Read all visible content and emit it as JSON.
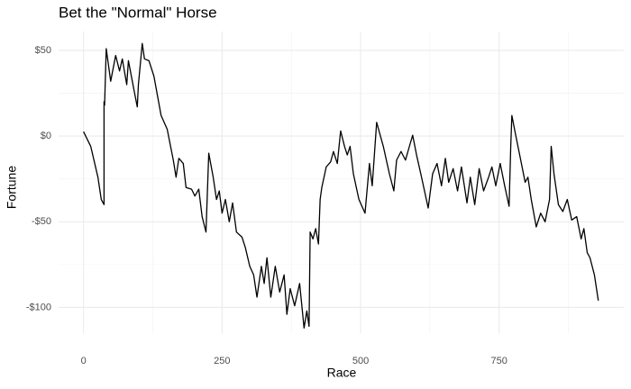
{
  "chart_data": {
    "type": "line",
    "title": "Bet the \"Normal\" Horse",
    "x_label": "Race",
    "y_label": "Fortune",
    "xlim": [
      -45,
      975
    ],
    "ylim": [
      -115,
      61
    ],
    "xticks": [
      0,
      250,
      500,
      750
    ],
    "x_minor_ticks": [
      125,
      375,
      625,
      875
    ],
    "yticks": [
      {
        "value": -100,
        "label": "-$100"
      },
      {
        "value": -50,
        "label": "-$50"
      },
      {
        "value": 0,
        "label": "$0"
      },
      {
        "value": 50,
        "label": "$50"
      }
    ],
    "y_minor_ticks": [
      -75,
      -25,
      25
    ],
    "grid": true,
    "series": [
      {
        "color": "#000000",
        "x": [
          0,
          13,
          26,
          32,
          37,
          37,
          38,
          41,
          49,
          58,
          65,
          70,
          78,
          81,
          91,
          97,
          99,
          106,
          110,
          118,
          127,
          140,
          151,
          162,
          167,
          172,
          180,
          185,
          195,
          201,
          208,
          214,
          221,
          226,
          234,
          240,
          245,
          250,
          256,
          263,
          269,
          276,
          286,
          292,
          300,
          307,
          313,
          321,
          326,
          331,
          338,
          346,
          354,
          362,
          367,
          373,
          381,
          390,
          398,
          403,
          407,
          409,
          414,
          419,
          424,
          427,
          430,
          438,
          446,
          451,
          458,
          464,
          471,
          476,
          481,
          487,
          497,
          508,
          516,
          521,
          529,
          541,
          552,
          560,
          565,
          573,
          581,
          589,
          594,
          601,
          610,
          622,
          630,
          638,
          646,
          653,
          659,
          667,
          675,
          682,
          692,
          698,
          706,
          714,
          722,
          731,
          737,
          744,
          752,
          760,
          768,
          771,
          773,
          779,
          789,
          797,
          802,
          808,
          817,
          825,
          833,
          841,
          844,
          849,
          857,
          865,
          873,
          881,
          890,
          898,
          903,
          909,
          914,
          922,
          929
        ],
        "values": [
          2.6,
          -6,
          -24,
          -37,
          -40,
          20,
          18,
          51,
          32,
          47,
          38,
          45,
          30,
          44,
          27,
          17,
          30,
          54,
          45,
          44,
          35,
          12,
          4,
          -14,
          -24,
          -13,
          -16,
          -30,
          -31,
          -35,
          -31,
          -47,
          -56,
          -10,
          -24,
          -37,
          -32,
          -45,
          -37,
          -50,
          -39,
          -56,
          -59,
          -65,
          -76,
          -81,
          -94,
          -76,
          -86,
          -71,
          -94,
          -76,
          -91,
          -81,
          -104,
          -89,
          -99,
          -86,
          -112,
          -102,
          -111,
          -56,
          -60,
          -54,
          -63,
          -37,
          -30,
          -18,
          -15,
          -9,
          -16,
          3,
          -6,
          -11,
          -6,
          -22,
          -37,
          -45,
          -16,
          -29,
          8,
          -6,
          -22,
          -32,
          -14,
          -9,
          -14,
          -5,
          0.5,
          -11,
          -24,
          -42,
          -22,
          -16,
          -29,
          -13,
          -27,
          -19,
          -32,
          -18,
          -39,
          -24,
          -40,
          -19,
          -32,
          -24,
          -18,
          -29,
          -16,
          -29,
          -41,
          -6,
          12,
          2,
          -14,
          -27,
          -24,
          -37,
          -53,
          -45,
          -50,
          -37,
          -6,
          -22,
          -40,
          -44,
          -37,
          -49,
          -47,
          -60,
          -54,
          -68,
          -71,
          -81,
          -96
        ]
      }
    ]
  }
}
